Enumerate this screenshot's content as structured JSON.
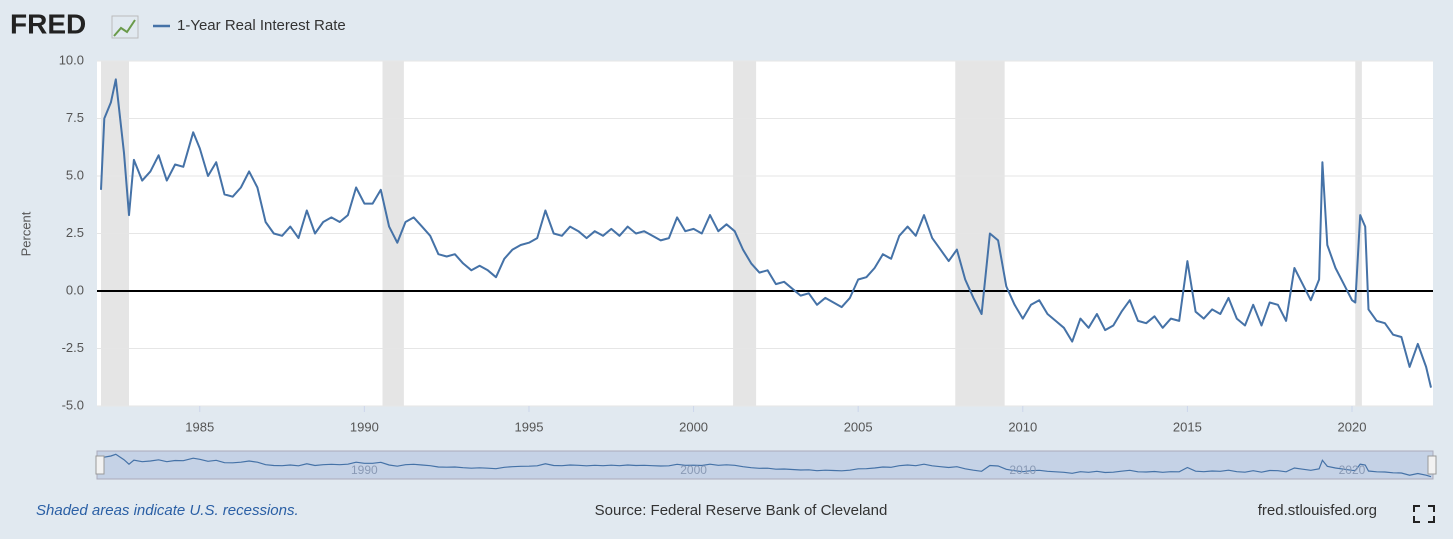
{
  "chart_data": {
    "type": "line",
    "brand": "FRED",
    "y_label": "Percent",
    "footnote": "Shaded areas indicate U.S. recessions.",
    "source": "Source: Federal Reserve Bank of Cleveland",
    "site": "fred.stlouisfed.org",
    "xlim": [
      1982,
      2022.4
    ],
    "ylim": [
      -5,
      10
    ],
    "xticks": [
      1985,
      1990,
      1995,
      2000,
      2005,
      2010,
      2015,
      2020
    ],
    "yticks": [
      {
        "value": -5,
        "label": "-5.0"
      },
      {
        "value": -2.5,
        "label": "-2.5"
      },
      {
        "value": 0,
        "label": "0.0"
      },
      {
        "value": 2.5,
        "label": "2.5"
      },
      {
        "value": 5,
        "label": "5.0"
      },
      {
        "value": 7.5,
        "label": "7.5"
      },
      {
        "value": 10,
        "label": "10.0"
      }
    ],
    "navigator_ticks": [
      1990,
      2000,
      2010,
      2020
    ],
    "grid": true,
    "zero_line": true,
    "recession_color": "#e5e5e5",
    "recessions": [
      [
        1982,
        1982.85
      ],
      [
        1990.55,
        1991.2
      ],
      [
        2001.2,
        2001.9
      ],
      [
        2007.95,
        2009.45
      ],
      [
        2020.1,
        2020.3
      ]
    ],
    "x": [
      1982,
      1982.1,
      1982.3,
      1982.45,
      1982.7,
      1982.85,
      1983,
      1983.25,
      1983.5,
      1983.75,
      1984,
      1984.25,
      1984.5,
      1984.8,
      1985,
      1985.25,
      1985.5,
      1985.75,
      1986,
      1986.25,
      1986.5,
      1986.75,
      1987,
      1987.25,
      1987.5,
      1987.75,
      1988,
      1988.25,
      1988.5,
      1988.75,
      1989,
      1989.25,
      1989.5,
      1989.75,
      1990,
      1990.25,
      1990.5,
      1990.75,
      1991,
      1991.25,
      1991.5,
      1991.75,
      1992,
      1992.25,
      1992.5,
      1992.75,
      1993,
      1993.25,
      1993.5,
      1993.75,
      1994,
      1994.25,
      1994.5,
      1994.75,
      1995,
      1995.25,
      1995.5,
      1995.75,
      1996,
      1996.25,
      1996.5,
      1996.75,
      1997,
      1997.25,
      1997.5,
      1997.75,
      1998,
      1998.25,
      1998.5,
      1998.75,
      1999,
      1999.25,
      1999.5,
      1999.75,
      2000,
      2000.25,
      2000.5,
      2000.75,
      2001,
      2001.25,
      2001.5,
      2001.75,
      2002,
      2002.25,
      2002.5,
      2002.75,
      2003,
      2003.25,
      2003.5,
      2003.75,
      2004,
      2004.25,
      2004.5,
      2004.75,
      2005,
      2005.25,
      2005.5,
      2005.75,
      2006,
      2006.25,
      2006.5,
      2006.75,
      2007,
      2007.25,
      2007.5,
      2007.75,
      2008,
      2008.25,
      2008.5,
      2008.75,
      2009,
      2009.25,
      2009.5,
      2009.75,
      2010,
      2010.25,
      2010.5,
      2010.75,
      2011,
      2011.25,
      2011.5,
      2011.75,
      2012,
      2012.25,
      2012.5,
      2012.75,
      2013,
      2013.25,
      2013.5,
      2013.75,
      2014,
      2014.25,
      2014.5,
      2014.75,
      2015,
      2015.25,
      2015.5,
      2015.75,
      2016,
      2016.25,
      2016.5,
      2016.75,
      2017,
      2017.25,
      2017.5,
      2017.75,
      2018,
      2018.25,
      2018.5,
      2018.75,
      2019,
      2019.1,
      2019.25,
      2019.5,
      2019.75,
      2020,
      2020.1,
      2020.25,
      2020.4,
      2020.5,
      2020.75,
      2021,
      2021.25,
      2021.5,
      2021.75,
      2022,
      2022.25,
      2022.4
    ],
    "series": [
      {
        "name": "1-Year Real Interest Rate",
        "color": "#4572a7",
        "values": [
          4.4,
          7.5,
          8.2,
          9.2,
          6.0,
          3.3,
          5.7,
          4.8,
          5.2,
          5.9,
          4.8,
          5.5,
          5.4,
          6.9,
          6.2,
          5.0,
          5.6,
          4.2,
          4.1,
          4.5,
          5.2,
          4.5,
          3.0,
          2.5,
          2.4,
          2.8,
          2.3,
          3.5,
          2.5,
          3.0,
          3.2,
          3.0,
          3.3,
          4.5,
          3.8,
          3.8,
          4.4,
          2.8,
          2.1,
          3.0,
          3.2,
          2.8,
          2.4,
          1.6,
          1.5,
          1.6,
          1.2,
          0.9,
          1.1,
          0.9,
          0.6,
          1.4,
          1.8,
          2.0,
          2.1,
          2.3,
          3.5,
          2.5,
          2.4,
          2.8,
          2.6,
          2.3,
          2.6,
          2.4,
          2.7,
          2.4,
          2.8,
          2.5,
          2.6,
          2.4,
          2.2,
          2.3,
          3.2,
          2.6,
          2.7,
          2.5,
          3.3,
          2.6,
          2.9,
          2.6,
          1.8,
          1.2,
          0.8,
          0.9,
          0.3,
          0.4,
          0.1,
          -0.2,
          -0.1,
          -0.6,
          -0.3,
          -0.5,
          -0.7,
          -0.3,
          0.5,
          0.6,
          1.0,
          1.6,
          1.4,
          2.4,
          2.8,
          2.4,
          3.3,
          2.3,
          1.8,
          1.3,
          1.8,
          0.5,
          -0.3,
          -1.0,
          2.5,
          2.2,
          0.2,
          -0.6,
          -1.2,
          -0.6,
          -0.4,
          -1.0,
          -1.3,
          -1.6,
          -2.2,
          -1.2,
          -1.6,
          -1.0,
          -1.7,
          -1.5,
          -0.9,
          -0.4,
          -1.3,
          -1.4,
          -1.1,
          -1.6,
          -1.2,
          -1.3,
          1.3,
          -0.9,
          -1.2,
          -0.8,
          -1.0,
          -0.3,
          -1.2,
          -1.5,
          -0.6,
          -1.5,
          -0.5,
          -0.6,
          -1.3,
          1.0,
          0.3,
          -0.4,
          0.5,
          5.6,
          2.0,
          1.0,
          0.3,
          -0.4,
          -0.5,
          3.3,
          2.8,
          -0.8,
          -1.3,
          -1.4,
          -1.9,
          -2.0,
          -3.3,
          -2.3,
          -3.3,
          -4.2
        ]
      }
    ]
  }
}
